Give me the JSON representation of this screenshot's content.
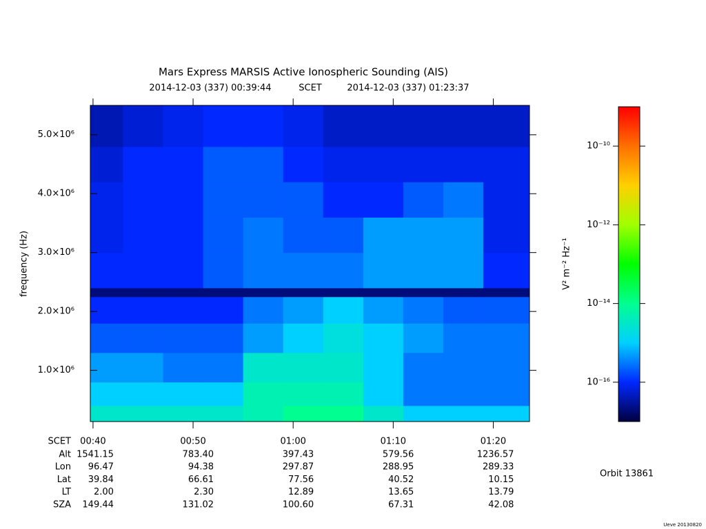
{
  "chart_data": {
    "type": "spectrogram",
    "title": "Mars Express MARSIS Active Ionospheric Sounding (AIS)",
    "subtitle": [
      "2014-12-03 (337) 00:39:44",
      "SCET",
      "2014-12-03 (337) 01:23:37"
    ],
    "y_label": "frequency (Hz)",
    "colorbar_label": "V² m⁻² Hz⁻¹",
    "xlim": [
      39.73,
      83.62
    ],
    "xticks": [
      {
        "value": 40,
        "label": "00:40"
      },
      {
        "value": 50,
        "label": "00:50"
      },
      {
        "value": 60,
        "label": "01:00"
      },
      {
        "value": 70,
        "label": "01:10"
      },
      {
        "value": 80,
        "label": "01:20"
      }
    ],
    "ylim": [
      130000,
      5500000
    ],
    "yticks": [
      {
        "value": 1000000,
        "label": "1.0×10⁶"
      },
      {
        "value": 2000000,
        "label": "2.0×10⁶"
      },
      {
        "value": 3000000,
        "label": "3.0×10⁶"
      },
      {
        "value": 4000000,
        "label": "4.0×10⁶"
      },
      {
        "value": 5000000,
        "label": "5.0×10⁶"
      }
    ],
    "clim": [
      1e-17,
      1e-09
    ],
    "cscale": "log",
    "cticks": [
      {
        "value": 1e-16,
        "label": "10⁻¹⁶"
      },
      {
        "value": 1e-14,
        "label": "10⁻¹⁴"
      },
      {
        "value": 1e-12,
        "label": "10⁻¹²"
      },
      {
        "value": 1e-10,
        "label": "10⁻¹⁰"
      }
    ],
    "colormap": [
      "#000040",
      "#0028ff",
      "#00d0ff",
      "#00ff90",
      "#00ff00",
      "#a0ff00",
      "#ffd000",
      "#ff7000",
      "#ff0000"
    ],
    "x_bins": [
      39.73,
      43,
      47,
      51,
      55,
      59,
      63,
      67,
      71,
      75,
      79,
      83.62
    ],
    "y_bins": [
      130000,
      400000,
      800000,
      1300000,
      1800000,
      2250000,
      2400000,
      3000000,
      3600000,
      4200000,
      4800000,
      5500000
    ],
    "z": [
      [
        3e-15,
        3e-15,
        3e-15,
        3e-15,
        5e-15,
        1e-14,
        1e-14,
        3e-15,
        1e-15,
        1e-15,
        1e-15
      ],
      [
        1e-15,
        1e-15,
        1e-15,
        1e-15,
        5e-15,
        5e-15,
        5e-15,
        1e-15,
        3e-16,
        3e-16,
        3e-16
      ],
      [
        5e-16,
        5e-16,
        3e-16,
        3e-16,
        3e-15,
        3e-15,
        3e-15,
        1e-15,
        3e-16,
        3e-16,
        3e-16
      ],
      [
        2e-16,
        2e-16,
        2e-16,
        2e-16,
        5e-16,
        1e-15,
        2e-15,
        1e-15,
        5e-16,
        3e-16,
        3e-16
      ],
      [
        1e-16,
        1e-16,
        1e-16,
        1e-16,
        3e-16,
        5e-16,
        1e-15,
        5e-16,
        3e-16,
        2e-16,
        2e-16
      ],
      [
        2e-17,
        2e-17,
        2e-17,
        2e-17,
        2e-17,
        2e-17,
        2e-17,
        2e-17,
        2e-17,
        2e-17,
        2e-17
      ],
      [
        1e-16,
        1e-16,
        1e-16,
        2e-16,
        3e-16,
        3e-16,
        3e-16,
        5e-16,
        5e-16,
        5e-16,
        1e-16
      ],
      [
        8e-17,
        1e-16,
        1e-16,
        2e-16,
        3e-16,
        2e-16,
        2e-16,
        5e-16,
        5e-16,
        5e-16,
        8e-17
      ],
      [
        8e-17,
        1e-16,
        1e-16,
        2e-16,
        2e-16,
        2e-16,
        1e-16,
        1e-16,
        2e-16,
        3e-16,
        8e-17
      ],
      [
        6e-17,
        1e-16,
        1e-16,
        2e-16,
        2e-16,
        1e-16,
        8e-17,
        8e-17,
        8e-17,
        8e-17,
        8e-17
      ],
      [
        4e-17,
        6e-17,
        8e-17,
        1e-16,
        1e-16,
        8e-17,
        5e-17,
        5e-17,
        5e-17,
        5e-17,
        5e-17
      ]
    ],
    "ephemeris": {
      "scet_label": "SCET",
      "rows": [
        {
          "label": "Alt",
          "values": [
            "1541.15",
            "783.40",
            "397.43",
            "579.56",
            "1236.57"
          ]
        },
        {
          "label": "Lon",
          "values": [
            "96.47",
            "94.38",
            "297.87",
            "288.95",
            "289.33"
          ]
        },
        {
          "label": "Lat",
          "values": [
            "39.84",
            "66.61",
            "77.56",
            "40.52",
            "10.15"
          ]
        },
        {
          "label": "LT",
          "values": [
            "2.00",
            "2.30",
            "12.89",
            "13.65",
            "13.79"
          ]
        },
        {
          "label": "SZA",
          "values": [
            "149.44",
            "131.02",
            "100.60",
            "67.31",
            "42.08"
          ]
        }
      ]
    },
    "orbit": "Orbit 13861",
    "footer": "Ueve 20130820"
  }
}
